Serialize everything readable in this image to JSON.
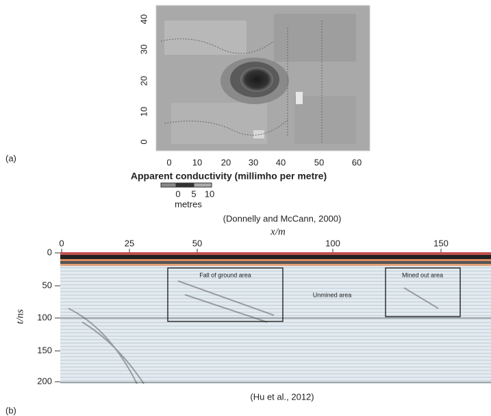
{
  "panel_a": {
    "label": "(a)",
    "y_ticks": [
      "0",
      "10",
      "20",
      "30",
      "40"
    ],
    "x_ticks": [
      "0",
      "10",
      "20",
      "30",
      "40",
      "50",
      "60"
    ],
    "colorbar_title": "Apparent conductivity (millimho per metre)",
    "scale_ticks": [
      "0",
      "5",
      "10"
    ],
    "scale_unit": "metres",
    "citation": "(Donnelly and McCann, 2000)"
  },
  "panel_b": {
    "label": "(b)",
    "x_axis_label": "x/m",
    "x_ticks": [
      "0",
      "25",
      "50",
      "100",
      "150"
    ],
    "y_axis_label": "t/ns",
    "y_ticks": [
      "0",
      "50",
      "100",
      "150",
      "200"
    ],
    "annotations": [
      "Fall of ground area",
      "Unmined area",
      "Mined out area"
    ],
    "citation": "(Hu et al., 2012)"
  }
}
